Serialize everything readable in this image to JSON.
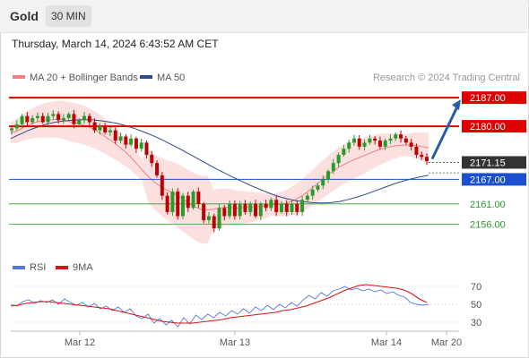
{
  "header": {
    "symbol": "Gold",
    "timeframe": "30 MIN"
  },
  "datetime": "Thursday, March 14, 2024 6:43:52 AM CET",
  "legend": {
    "bollinger": "MA 20 + Bollinger Bands",
    "ma50": "MA 50",
    "rsi": "RSI",
    "rsi_ma": "9MA"
  },
  "watermark": "Research © 2024 Trading Central",
  "colors": {
    "bollinger": "#f08080",
    "ma50": "#2a4a8a",
    "resistance": "#e00000",
    "support": "#1a4fd0",
    "target": "#2a9a2a",
    "rsi": "#5577dd",
    "rsi_ma": "#dd1111",
    "arrow": "#2a5cab",
    "up_candle": "#2a9a2a",
    "down_candle": "#c00000"
  },
  "chart_data": [
    {
      "type": "candlestick",
      "ylim": [
        2150,
        2189
      ],
      "x_ticks": [
        "Mar 12",
        "Mar 13",
        "Mar 14",
        "Mar 20"
      ],
      "price_levels": [
        {
          "label": "2187.00",
          "value": 2187.0,
          "role": "resistance"
        },
        {
          "label": "2180.00",
          "value": 2180.0,
          "role": "resistance"
        },
        {
          "label": "2171.15",
          "value": 2171.15,
          "role": "last price"
        },
        {
          "label": "2167.00",
          "value": 2167.0,
          "role": "pivot"
        },
        {
          "label": "2161.00",
          "value": 2161.0,
          "role": "support"
        },
        {
          "label": "2156.00",
          "value": 2156.0,
          "role": "support"
        }
      ],
      "forecast_arrow": {
        "from": 2172,
        "to": 2187
      },
      "close_path": [
        2179.5,
        2180.5,
        2182.5,
        2181,
        2182,
        2182.5,
        2181,
        2182.5,
        2183,
        2181.5,
        2182,
        2183,
        2180.5,
        2181.5,
        2182.5,
        2181,
        2179,
        2180,
        2178.5,
        2179,
        2176.5,
        2177.5,
        2175.5,
        2177,
        2174.5,
        2176,
        2173,
        2171,
        2168,
        2163,
        2159,
        2164,
        2158,
        2163,
        2160,
        2164,
        2161,
        2157,
        2158,
        2155,
        2160,
        2158,
        2161,
        2158,
        2161,
        2159,
        2161,
        2158,
        2161,
        2160,
        2162,
        2159,
        2161,
        2159,
        2161,
        2159,
        2162,
        2163,
        2164.5,
        2165.5,
        2167,
        2169,
        2171,
        2173,
        2174.5,
        2176,
        2177,
        2175,
        2176,
        2177,
        2176.5,
        2175,
        2176.5,
        2177,
        2178,
        2177,
        2176,
        2175,
        2173,
        2172.5,
        2171.5
      ],
      "series": [
        {
          "name": "MA 20 + Bollinger Bands",
          "values": [
            2178.5,
            2178.8,
            2179.6,
            2180.4,
            2180.9,
            2181.3,
            2181.5,
            2181.6,
            2181.7,
            2181.5,
            2181.1,
            2180.8,
            2180.4,
            2179.9,
            2179.2,
            2178.3,
            2177.3,
            2176.3,
            2175.2,
            2174.0,
            2172.6,
            2171.0,
            2169.3,
            2167.8,
            2166.4,
            2165.4,
            2164.5,
            2163.8,
            2163.0,
            2162.0,
            2161.0,
            2160.2,
            2159.6,
            2159.5,
            2159.7,
            2160.0,
            2160.2,
            2160.1,
            2160.0,
            2160.1,
            2160.2,
            2160.3,
            2160.4,
            2160.6,
            2160.8,
            2160.9,
            2161.1,
            2161.6,
            2162.3,
            2163.2,
            2164.3,
            2165.5,
            2166.7,
            2167.9,
            2169.0,
            2170.0,
            2170.8,
            2171.5,
            2172.1,
            2172.7,
            2173.3,
            2173.9,
            2174.4,
            2174.8,
            2175.1,
            2175.3,
            2175.4,
            2175.4,
            2175.3,
            2175.0,
            2174.7
          ]
        },
        {
          "name": "MA 50",
          "values": [
            2177.0,
            2178.0,
            2179.0,
            2179.8,
            2180.5,
            2181.0,
            2181.3,
            2181.5,
            2181.6,
            2181.6,
            2181.4,
            2181.1,
            2180.7,
            2180.1,
            2179.4,
            2178.6,
            2177.7,
            2176.7,
            2175.6,
            2174.5,
            2173.3,
            2172.1,
            2170.9,
            2169.7,
            2168.6,
            2167.5,
            2166.5,
            2165.5,
            2164.6,
            2163.7,
            2162.9,
            2162.3,
            2161.8,
            2161.5,
            2161.3,
            2161.2,
            2161.3,
            2161.6,
            2162.1,
            2162.7,
            2163.4,
            2164.2,
            2165.0,
            2165.8,
            2166.5,
            2167.1,
            2167.6,
            2168.0
          ]
        }
      ]
    },
    {
      "type": "line",
      "ylim": [
        22,
        80
      ],
      "y_ticks": [
        30,
        50,
        70
      ],
      "series": [
        {
          "name": "RSI",
          "values": [
            50,
            48,
            53,
            55,
            51,
            54,
            52,
            55,
            50,
            56,
            52,
            49,
            52,
            47,
            51,
            45,
            48,
            43,
            47,
            41,
            45,
            37,
            34,
            39,
            29,
            34,
            27,
            32,
            25,
            35,
            28,
            38,
            33,
            39,
            35,
            41,
            37,
            43,
            39,
            45,
            40,
            47,
            43,
            49,
            44,
            50,
            46,
            52,
            48,
            55,
            60,
            56,
            63,
            59,
            65,
            67,
            70,
            66,
            68,
            65,
            67,
            64,
            66,
            62,
            64,
            60,
            58,
            52,
            50,
            49,
            50
          ]
        },
        {
          "name": "9MA",
          "values": [
            48,
            49,
            51,
            52,
            53,
            53,
            52,
            51,
            50,
            49,
            48,
            47,
            46,
            45,
            43,
            41,
            39,
            37,
            35,
            33,
            31,
            30,
            29,
            29,
            29,
            30,
            31,
            32,
            33,
            35,
            36,
            37,
            38,
            39,
            40,
            41,
            43,
            44,
            46,
            48,
            51,
            54,
            57,
            61,
            65,
            68,
            71,
            72,
            71,
            70,
            69,
            68,
            66,
            62,
            56,
            52
          ]
        }
      ]
    }
  ]
}
